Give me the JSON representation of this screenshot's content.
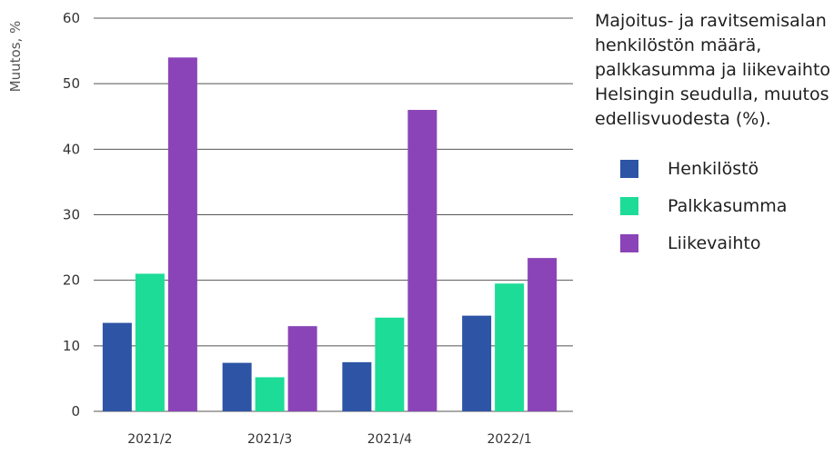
{
  "chart_data": {
    "type": "bar",
    "title": "Majoitus- ja ravitsemisalan henkilöstön määrä, palkkasumma ja liikevaihto Helsingin seudulla, muutos edellisvuodesta (%).",
    "ylabel": "Muutos, %",
    "xlabel": "",
    "ylim": [
      0,
      60
    ],
    "yticks": [
      0,
      10,
      20,
      30,
      40,
      50,
      60
    ],
    "grid": true,
    "legend_position": "right",
    "categories": [
      "2021/2",
      "2021/3",
      "2021/4",
      "2022/1"
    ],
    "series": [
      {
        "name": "Henkilöstö",
        "color": "#2e55a5",
        "values": [
          13.5,
          7.4,
          7.5,
          14.6
        ]
      },
      {
        "name": "Palkkasumma",
        "color": "#1ddc97",
        "values": [
          21.0,
          5.2,
          14.3,
          19.5
        ]
      },
      {
        "name": "Liikevaihto",
        "color": "#8a44b8",
        "values": [
          54.0,
          13.0,
          46.0,
          23.4
        ]
      }
    ]
  }
}
